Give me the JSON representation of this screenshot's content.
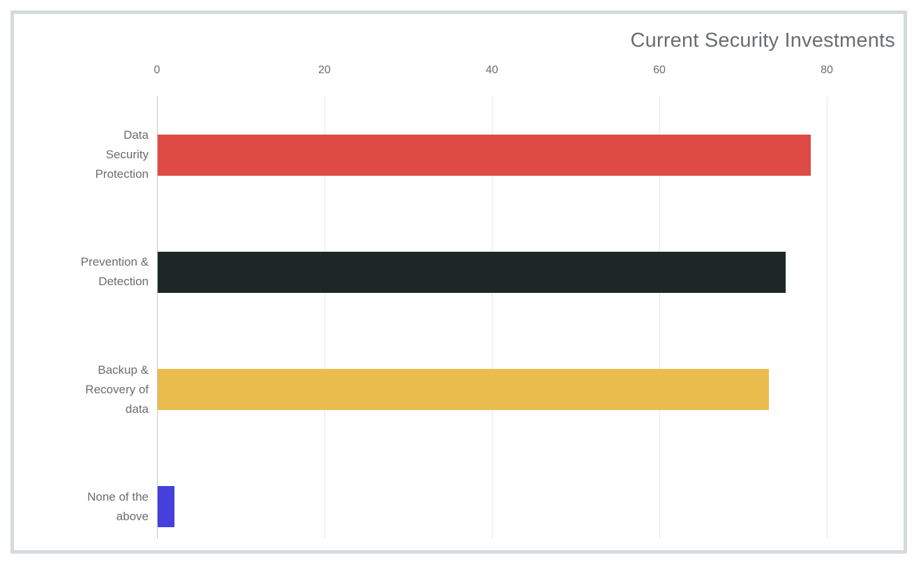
{
  "chart_data": {
    "type": "bar",
    "orientation": "horizontal",
    "title": "Current Security Investments",
    "categories": [
      "Data Security Protection",
      "Prevention & Detection",
      "Backup & Recovery of data",
      "None of the above"
    ],
    "category_label_lines": [
      [
        "Data",
        "Security",
        "Protection"
      ],
      [
        "Prevention &",
        "Detection"
      ],
      [
        "Backup &",
        "Recovery of",
        "data"
      ],
      [
        "None of the",
        "above"
      ]
    ],
    "values": [
      78,
      75,
      73,
      2
    ],
    "bar_colors": [
      "#DD4B44",
      "#1E2628",
      "#EABC4D",
      "#4540DB"
    ],
    "xticks": [
      0,
      20,
      40,
      60,
      80
    ],
    "xlim": [
      0,
      80
    ],
    "xlabel": "",
    "ylabel": "",
    "grid": "vertical",
    "legend": "none"
  },
  "style": {
    "card_border_color": "#D5DADD",
    "title_color": "#6A6D70",
    "label_color": "#696C6E",
    "gridline_color": "#E8E8E8",
    "axis_line_color": "#C4C8CA",
    "background": "#FFFFFF"
  }
}
